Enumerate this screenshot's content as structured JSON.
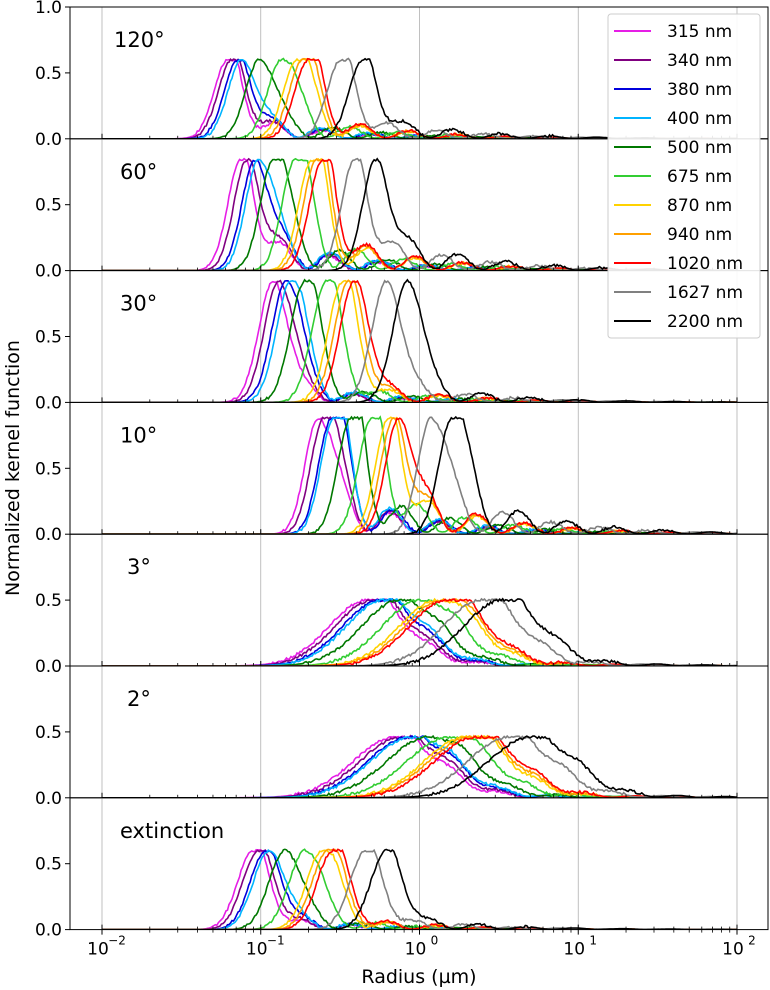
{
  "chart_data": {
    "type": "line",
    "title": "",
    "xlabel": "Radius (µm)",
    "ylabel": "Normalized kernel function",
    "xscale": "log",
    "xlim": [
      0.01,
      100
    ],
    "ylim": [
      0,
      1.0
    ],
    "x_ticks": [
      0.01,
      0.1,
      1,
      10,
      100
    ],
    "x_tick_labels": [
      "10",
      "10",
      "10",
      "10",
      "10"
    ],
    "x_tick_exponents": [
      "−2",
      "−1",
      "0",
      "1",
      "2"
    ],
    "y_ticks_top_panel": [
      "0.0",
      "0.5",
      "1.0"
    ],
    "y_ticks_other_panels": [
      "0.0",
      "0.5"
    ],
    "grid": "vertical at decades",
    "legend_position": "top-right",
    "series": [
      {
        "name": "315 nm",
        "color": "#e61ee6"
      },
      {
        "name": "340 nm",
        "color": "#800080"
      },
      {
        "name": "380 nm",
        "color": "#0000dc"
      },
      {
        "name": "400 nm",
        "color": "#00b4ff"
      },
      {
        "name": "500 nm",
        "color": "#007800"
      },
      {
        "name": "675 nm",
        "color": "#32cd32"
      },
      {
        "name": "870 nm",
        "color": "#ffd200"
      },
      {
        "name": "940 nm",
        "color": "#ffa000"
      },
      {
        "name": "1020 nm",
        "color": "#ff0000"
      },
      {
        "name": "1627 nm",
        "color": "#808080"
      },
      {
        "name": "2200 nm",
        "color": "#000000"
      }
    ],
    "wavelengths_nm": [
      315,
      340,
      380,
      400,
      500,
      675,
      870,
      940,
      1020,
      1627,
      2200
    ],
    "panels": [
      {
        "label": "120°",
        "peak_radius_um": [
          0.062,
          0.066,
          0.072,
          0.076,
          0.098,
          0.135,
          0.17,
          0.185,
          0.2,
          0.32,
          0.44
        ],
        "peak_height": 0.6,
        "width": 0.2,
        "tail_extent": 0.65,
        "tail_level": 0.35
      },
      {
        "label": "60°",
        "peak_radius_um": [
          0.075,
          0.082,
          0.092,
          0.097,
          0.12,
          0.165,
          0.21,
          0.225,
          0.245,
          0.39,
          0.53
        ],
        "peak_height": 0.84,
        "width": 0.19,
        "tail_extent": 0.55,
        "tail_level": 0.4
      },
      {
        "label": "30°",
        "peak_radius_um": [
          0.12,
          0.13,
          0.145,
          0.155,
          0.19,
          0.26,
          0.33,
          0.36,
          0.39,
          0.62,
          0.84
        ],
        "peak_height": 0.92,
        "width": 0.21,
        "tail_extent": 0.4,
        "tail_level": 0.18
      },
      {
        "label": "10°",
        "peak_radius_um": [
          0.23,
          0.25,
          0.28,
          0.29,
          0.37,
          0.5,
          0.64,
          0.69,
          0.74,
          1.18,
          1.6
        ],
        "peak_height": 0.88,
        "width": 0.19,
        "tail_extent": 0.4,
        "tail_level": 0.45
      },
      {
        "label": "3°",
        "peak_radius_um": [
          0.47,
          0.51,
          0.57,
          0.6,
          0.75,
          1.01,
          1.3,
          1.4,
          1.5,
          2.45,
          3.3
        ],
        "peak_height": 0.5,
        "width": 0.55,
        "tail_extent": 0.25,
        "tail_level": 0.2
      },
      {
        "label": "2°",
        "peak_radius_um": [
          0.7,
          0.77,
          0.86,
          0.9,
          1.13,
          1.52,
          1.96,
          2.1,
          2.27,
          3.67,
          4.97
        ],
        "peak_height": 0.46,
        "width": 0.6,
        "tail_extent": 0.25,
        "tail_level": 0.22
      },
      {
        "label": "extinction",
        "peak_radius_um": [
          0.09,
          0.097,
          0.108,
          0.113,
          0.142,
          0.19,
          0.245,
          0.265,
          0.285,
          0.46,
          0.62
        ],
        "peak_height": 0.6,
        "width": 0.23,
        "tail_extent": 0.45,
        "tail_level": 0.2
      }
    ]
  }
}
